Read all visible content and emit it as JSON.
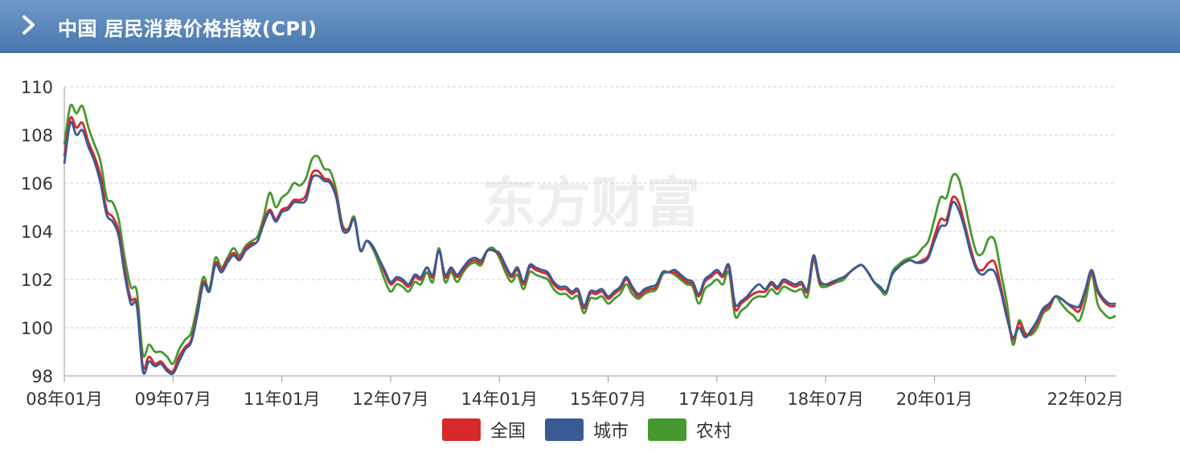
{
  "header": {
    "title": "中国 居民消费价格指数(CPI)"
  },
  "watermark": "东方财富",
  "colors": {
    "series_0": "#d7282b",
    "series_1": "#3a5a96",
    "series_2": "#47982f"
  },
  "chart_data": {
    "type": "line",
    "title": "中国 居民消费价格指数(CPI)",
    "xlabel": "",
    "ylabel": "",
    "ylim": [
      98,
      110
    ],
    "yticks": [
      98,
      100,
      102,
      104,
      106,
      108,
      110
    ],
    "xticks": [
      "08年01月",
      "09年07月",
      "11年01月",
      "12年07月",
      "14年01月",
      "15年07月",
      "17年01月",
      "18年07月",
      "20年01月",
      "22年02月"
    ],
    "x_start": "2008-01",
    "grid": "horizontal dashed",
    "legend_position": "bottom",
    "series": [
      {
        "name": "全国",
        "color": "#d7282b",
        "values": [
          107.1,
          108.7,
          108.3,
          108.5,
          107.7,
          107.1,
          106.3,
          104.9,
          104.6,
          104.0,
          102.4,
          101.2,
          101.0,
          98.4,
          98.8,
          98.5,
          98.6,
          98.3,
          98.2,
          98.8,
          99.2,
          99.5,
          100.6,
          101.9,
          101.5,
          102.7,
          102.4,
          102.8,
          103.1,
          102.9,
          103.3,
          103.5,
          103.6,
          104.4,
          104.9,
          104.5,
          104.9,
          105.0,
          105.3,
          105.3,
          105.5,
          106.4,
          106.5,
          106.2,
          106.1,
          105.5,
          104.2,
          104.1,
          104.5,
          103.2,
          103.6,
          103.4,
          102.9,
          102.3,
          101.8,
          102.0,
          101.9,
          101.7,
          102.1,
          102.0,
          102.5,
          102.1,
          103.2,
          102.1,
          102.4,
          102.1,
          102.4,
          102.7,
          102.8,
          102.7,
          103.2,
          103.2,
          103.0,
          102.5,
          102.1,
          102.4,
          101.8,
          102.5,
          102.4,
          102.3,
          102.2,
          101.8,
          101.6,
          101.6,
          101.4,
          101.5,
          100.8,
          101.4,
          101.4,
          101.5,
          101.2,
          101.4,
          101.6,
          102.0,
          101.6,
          101.3,
          101.5,
          101.6,
          101.7,
          102.3,
          102.3,
          102.3,
          102.1,
          101.9,
          101.8,
          101.3,
          101.9,
          102.1,
          102.3,
          102.1,
          102.5,
          100.8,
          101.0,
          101.2,
          101.4,
          101.5,
          101.5,
          101.8,
          101.6,
          101.9,
          101.8,
          101.7,
          101.8,
          101.5,
          102.9,
          101.9,
          101.8,
          101.8,
          102.0,
          102.1,
          102.3,
          102.5,
          102.6,
          102.3,
          101.9,
          101.7,
          101.5,
          102.2,
          102.5,
          102.7,
          102.8,
          102.7,
          102.8,
          103.0,
          103.8,
          104.5,
          104.5,
          105.4,
          105.2,
          104.3,
          103.3,
          102.5,
          102.4,
          102.7,
          102.7,
          101.7,
          100.5,
          99.5,
          100.2,
          99.7,
          99.8,
          100.2,
          100.7,
          100.9,
          101.3,
          101.2,
          101.0,
          100.8,
          100.7,
          101.5,
          102.3,
          101.5,
          101.1,
          100.9,
          100.9
        ]
      },
      {
        "name": "城市",
        "color": "#3a5a96",
        "values": [
          106.8,
          108.5,
          108.0,
          108.2,
          107.5,
          106.9,
          106.0,
          104.7,
          104.4,
          103.8,
          102.2,
          101.0,
          100.9,
          98.2,
          98.6,
          98.4,
          98.5,
          98.2,
          98.1,
          98.6,
          99.1,
          99.4,
          100.5,
          101.8,
          101.5,
          102.6,
          102.3,
          102.7,
          103.0,
          102.8,
          103.2,
          103.4,
          103.6,
          104.3,
          104.8,
          104.4,
          104.8,
          104.9,
          105.2,
          105.2,
          105.3,
          106.2,
          106.3,
          106.1,
          106.0,
          105.4,
          104.1,
          104.0,
          104.5,
          103.2,
          103.6,
          103.4,
          102.9,
          102.4,
          101.9,
          102.1,
          102.0,
          101.8,
          102.2,
          102.1,
          102.5,
          102.2,
          103.2,
          102.2,
          102.5,
          102.2,
          102.5,
          102.8,
          102.9,
          102.8,
          103.2,
          103.2,
          103.1,
          102.6,
          102.2,
          102.5,
          101.9,
          102.6,
          102.5,
          102.4,
          102.3,
          101.9,
          101.7,
          101.7,
          101.5,
          101.6,
          100.9,
          101.5,
          101.5,
          101.6,
          101.3,
          101.5,
          101.7,
          102.1,
          101.7,
          101.4,
          101.6,
          101.7,
          101.8,
          102.3,
          102.3,
          102.4,
          102.2,
          102.0,
          101.9,
          101.4,
          102.0,
          102.2,
          102.4,
          102.2,
          102.6,
          101.0,
          101.1,
          101.3,
          101.6,
          101.8,
          101.6,
          101.9,
          101.7,
          102.0,
          101.9,
          101.8,
          101.9,
          101.6,
          103.0,
          102.0,
          101.8,
          101.9,
          102.0,
          102.1,
          102.3,
          102.5,
          102.6,
          102.3,
          101.9,
          101.7,
          101.5,
          102.2,
          102.5,
          102.7,
          102.8,
          102.7,
          102.7,
          102.9,
          103.6,
          104.2,
          104.3,
          105.2,
          104.9,
          104.1,
          103.1,
          102.4,
          102.2,
          102.4,
          102.3,
          101.5,
          100.4,
          99.6,
          100.0,
          99.6,
          99.9,
          100.3,
          100.8,
          101.0,
          101.3,
          101.2,
          101.0,
          100.9,
          100.9,
          101.6,
          102.4,
          101.6,
          101.2,
          101.0,
          101.0
        ]
      },
      {
        "name": "农村",
        "color": "#47982f",
        "values": [
          107.6,
          109.2,
          108.9,
          109.2,
          108.3,
          107.6,
          106.9,
          105.4,
          105.2,
          104.5,
          102.9,
          101.7,
          101.5,
          98.9,
          99.3,
          99.0,
          99.0,
          98.8,
          98.5,
          99.1,
          99.5,
          99.8,
          100.9,
          102.1,
          101.6,
          102.9,
          102.5,
          102.9,
          103.3,
          103.0,
          103.4,
          103.6,
          103.8,
          104.6,
          105.6,
          105.0,
          105.4,
          105.6,
          106.0,
          105.9,
          106.2,
          107.0,
          107.1,
          106.6,
          106.5,
          105.7,
          104.3,
          104.1,
          104.6,
          103.2,
          103.6,
          103.3,
          102.7,
          102.0,
          101.5,
          101.8,
          101.7,
          101.5,
          101.9,
          101.8,
          102.3,
          101.9,
          103.3,
          101.9,
          102.3,
          101.9,
          102.3,
          102.6,
          102.7,
          102.6,
          103.2,
          103.3,
          102.9,
          102.3,
          101.9,
          102.2,
          101.6,
          102.3,
          102.2,
          102.1,
          102.0,
          101.6,
          101.4,
          101.4,
          101.2,
          101.3,
          100.6,
          101.2,
          101.2,
          101.3,
          101.0,
          101.2,
          101.4,
          101.8,
          101.4,
          101.2,
          101.4,
          101.5,
          101.6,
          102.2,
          102.3,
          102.2,
          102.0,
          101.8,
          101.7,
          101.0,
          101.6,
          101.8,
          102.0,
          101.8,
          102.3,
          100.5,
          100.7,
          100.9,
          101.2,
          101.3,
          101.3,
          101.6,
          101.4,
          101.7,
          101.6,
          101.5,
          101.6,
          101.3,
          102.8,
          101.8,
          101.7,
          101.8,
          101.9,
          102.0,
          102.3,
          102.5,
          102.6,
          102.3,
          101.9,
          101.6,
          101.4,
          102.3,
          102.6,
          102.8,
          102.9,
          103.0,
          103.3,
          103.6,
          104.5,
          105.4,
          105.4,
          106.3,
          106.2,
          105.2,
          104.0,
          103.1,
          103.1,
          103.7,
          103.6,
          102.3,
          101.0,
          99.3,
          100.3,
          99.8,
          99.7,
          100.0,
          100.6,
          100.8,
          101.3,
          101.0,
          100.7,
          100.5,
          100.3,
          101.1,
          102.2,
          101.0,
          100.6,
          100.4,
          100.5
        ]
      }
    ]
  }
}
